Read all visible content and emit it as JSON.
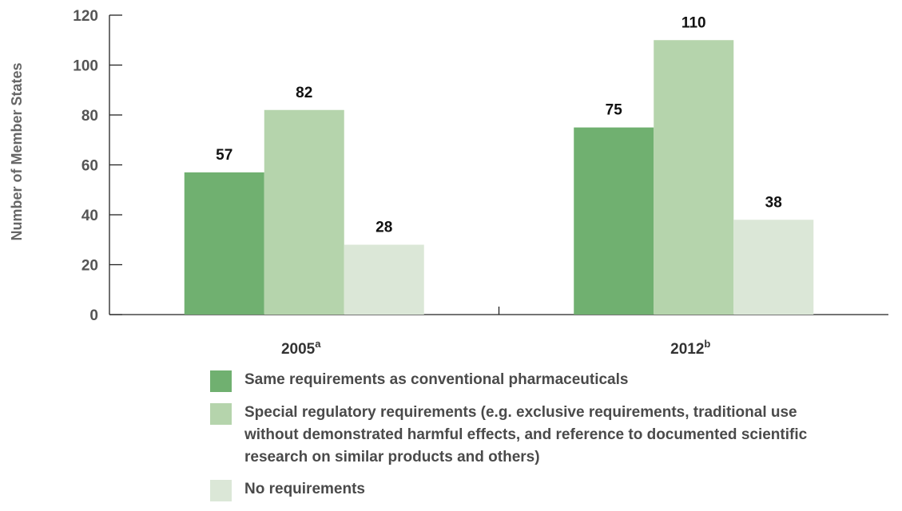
{
  "chart_data": {
    "type": "bar",
    "categories": [
      {
        "label": "2005",
        "superscript": "a"
      },
      {
        "label": "2012",
        "superscript": "b"
      }
    ],
    "series": [
      {
        "name": "Same requirements as conventional pharmaceuticals",
        "color": "#70b070",
        "values": [
          57,
          75
        ]
      },
      {
        "name": "Special regulatory requirements (e.g. exclusive requirements, traditional use\nwithout demonstrated harmful effects, and reference to documented scientific\nresearch on similar products and others)",
        "color": "#b5d4ac",
        "values": [
          82,
          110
        ]
      },
      {
        "name": "No requirements",
        "color": "#dbe7d7",
        "values": [
          28,
          38
        ]
      }
    ],
    "ylabel": "Number of Member States",
    "xlabel": "",
    "ylim": [
      0,
      120
    ],
    "yticks": [
      0,
      20,
      40,
      60,
      80,
      100,
      120
    ],
    "grid": false,
    "legend_position": "bottom"
  }
}
